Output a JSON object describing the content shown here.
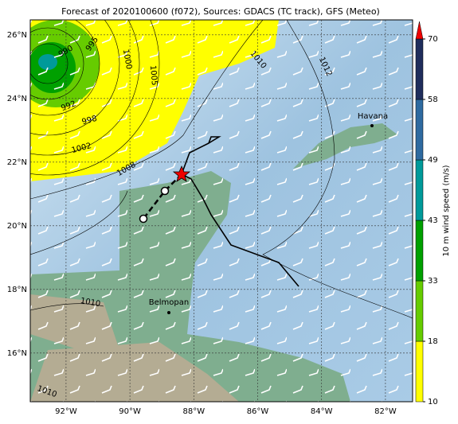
{
  "title": "Forecast of 2020100600 (f072), Sources: GDACS (TC track), GFS (Meteo)",
  "map": {
    "xlim": [
      -93.12,
      -81.15
    ],
    "ylim": [
      14.47,
      26.47
    ],
    "lat_ticks": [
      {
        "value": 16,
        "label": "16°N"
      },
      {
        "value": 18,
        "label": "18°N"
      },
      {
        "value": 20,
        "label": "20°N"
      },
      {
        "value": 22,
        "label": "22°N"
      },
      {
        "value": 24,
        "label": "24°N"
      },
      {
        "value": 26,
        "label": "26°N"
      }
    ],
    "lon_ticks": [
      {
        "value": -92,
        "label": "92°W"
      },
      {
        "value": -90,
        "label": "90°W"
      },
      {
        "value": -88,
        "label": "88°W"
      },
      {
        "value": -86,
        "label": "86°W"
      },
      {
        "value": -84,
        "label": "84°W"
      },
      {
        "value": -82,
        "label": "82°W"
      }
    ],
    "isobar_labels": [
      990,
      995,
      1000,
      1005,
      1010,
      1012,
      992,
      998,
      1002,
      1008,
      1010,
      1010
    ],
    "cities": [
      "Havana",
      "Belmopan"
    ]
  },
  "colorbar": {
    "title": "10 m wind speed (m/s)",
    "ticks": [
      10,
      18,
      33,
      43,
      49,
      58,
      70
    ],
    "colors": [
      "#ffff00",
      "#66cc00",
      "#00a000",
      "#009a9a",
      "#2e6aa0",
      "#1f2d5c"
    ]
  }
}
